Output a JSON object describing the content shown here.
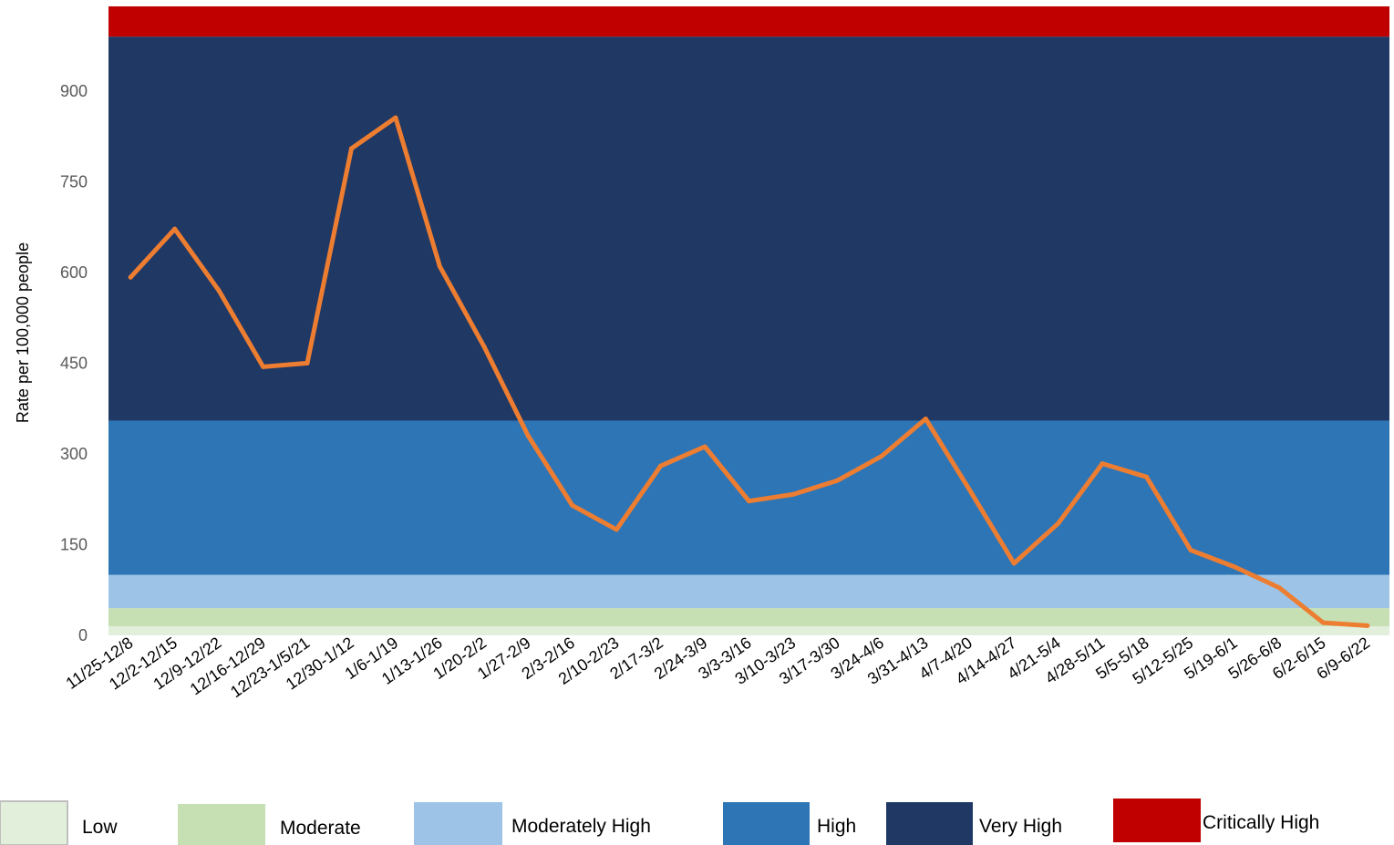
{
  "chart_data": {
    "type": "line",
    "title": "",
    "xlabel": "",
    "ylabel": "Rate per 100,000 people",
    "ylim": [
      0,
      1040
    ],
    "yticks": [
      0,
      150,
      300,
      450,
      600,
      750,
      900
    ],
    "ytick_labels": [
      "0",
      "150",
      "300",
      "450",
      "600",
      "750",
      "900"
    ],
    "grid": false,
    "legend_placement": "bottom",
    "categories": [
      "11/25-12/8",
      "12/2-12/15",
      "12/9-12/22",
      "12/16-12/29",
      "12/23-1/5/21",
      "12/30-1/12",
      "1/6-1/19",
      "1/13-1/26",
      "1/20-2/2",
      "1/27-2/9",
      "2/3-2/16",
      "2/10-2/23",
      "2/17-3/2",
      "2/24-3/9",
      "3/3-3/16",
      "3/10-3/23",
      "3/17-3/30",
      "3/24-4/6",
      "3/31-4/13",
      "4/7-4/20",
      "4/14-4/27",
      "4/21-5/4",
      "4/28-5/11",
      "5/5-5/18",
      "5/12-5/25",
      "5/19-6/1",
      "5/26-6/8",
      "6/2-6/15",
      "6/9-6/22"
    ],
    "series": [
      {
        "name": "",
        "color": "#ED7D31",
        "values": [
          592,
          672,
          570,
          444,
          450,
          805,
          856,
          610,
          478,
          330,
          215,
          175,
          280,
          312,
          222,
          233,
          256,
          296,
          358,
          240,
          119,
          185,
          284,
          262,
          141,
          113,
          79,
          21,
          16
        ]
      }
    ],
    "risk_bands": [
      {
        "label": "Low",
        "from": 0,
        "to": 15,
        "color": "#E2EFDA"
      },
      {
        "label": "Moderate",
        "from": 15,
        "to": 45,
        "color": "#C6E0B4"
      },
      {
        "label": "Moderately High",
        "from": 45,
        "to": 100,
        "color": "#9DC3E6"
      },
      {
        "label": "High",
        "from": 100,
        "to": 355,
        "color": "#2E75B6"
      },
      {
        "label": "Very High",
        "from": 355,
        "to": 990,
        "color": "#203864"
      },
      {
        "label": "Critically High",
        "from": 990,
        "to": 1040,
        "color": "#C00000"
      }
    ]
  }
}
